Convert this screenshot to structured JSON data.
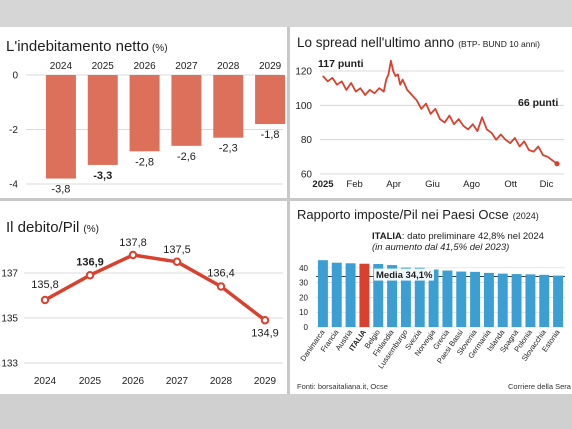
{
  "colors": {
    "bar": "#dd705a",
    "line": "#d9412e",
    "blue_bar": "#3c9fd4",
    "italy_bar": "#d9412e",
    "grid": "#cfcfcf",
    "text": "#1d1d1d"
  },
  "charts": {
    "debt_change": {
      "title_main": "L'indebitamento netto",
      "title_unit": "(%)"
    },
    "spread": {
      "title_main": "Lo spread nell'ultimo anno",
      "title_unit": "(BTP- BUND 10 anni)",
      "start_annotation": "117 punti",
      "end_annotation": "66 punti"
    },
    "debt_gdp": {
      "title_main": "Il debito/Pil",
      "title_unit": "(%)"
    },
    "tax_ratio": {
      "title_main": "Rapporto imposte/Pil nei Paesi Ocse",
      "title_unit": "(2024)",
      "italy_note_bold": "ITALIA",
      "italy_note_rest": ": dato preliminare 42,8% nel 2024",
      "italy_note_line2": "(in aumento dal 41,5% del 2023)",
      "average_label": "Media 34,1%"
    }
  },
  "footer": {
    "sources": "Fonti: borsaitaliana.it, Ocse",
    "credit": "Corriere della Sera"
  },
  "chart_data": [
    {
      "type": "bar",
      "title": "L'indebitamento netto (%)",
      "categories": [
        "2024",
        "2025",
        "2026",
        "2027",
        "2028",
        "2029"
      ],
      "values": [
        -3.8,
        -3.3,
        -2.8,
        -2.6,
        -2.3,
        -1.8
      ],
      "value_labels": [
        "-3,8",
        "-3,3",
        "-2,8",
        "-2,6",
        "-2,3",
        "-1,8"
      ],
      "yticks": [
        "0",
        "-2",
        "-4"
      ],
      "ylim": [
        -4,
        0
      ],
      "grid": true
    },
    {
      "type": "line",
      "title": "Lo spread nell'ultimo anno (BTP- BUND 10 anni)",
      "xticks": [
        "2025",
        "Feb",
        "Apr",
        "Giu",
        "Ago",
        "Ott",
        "Dic"
      ],
      "yticks": [
        "120",
        "100",
        "80",
        "60"
      ],
      "ylim": [
        60,
        125
      ],
      "x": [
        0,
        0.02,
        0.04,
        0.06,
        0.08,
        0.1,
        0.12,
        0.14,
        0.16,
        0.18,
        0.2,
        0.22,
        0.24,
        0.26,
        0.27,
        0.28,
        0.29,
        0.3,
        0.31,
        0.32,
        0.33,
        0.34,
        0.36,
        0.38,
        0.4,
        0.42,
        0.44,
        0.46,
        0.48,
        0.5,
        0.52,
        0.54,
        0.56,
        0.58,
        0.6,
        0.62,
        0.64,
        0.66,
        0.68,
        0.7,
        0.72,
        0.74,
        0.76,
        0.78,
        0.8,
        0.82,
        0.84,
        0.86,
        0.88,
        0.9,
        0.92,
        0.94,
        0.96,
        0.98,
        1.0
      ],
      "values": [
        117,
        114,
        116,
        112,
        114,
        109,
        113,
        108,
        110,
        106,
        109,
        107,
        110,
        108,
        115,
        118,
        126,
        120,
        117,
        118,
        112,
        115,
        109,
        106,
        103,
        98,
        101,
        95,
        98,
        92,
        90,
        94,
        89,
        92,
        88,
        86,
        89,
        85,
        93,
        86,
        84,
        80,
        83,
        80,
        78,
        81,
        76,
        79,
        74,
        73,
        76,
        71,
        70,
        68,
        66
      ],
      "grid": true
    },
    {
      "type": "line",
      "title": "Il debito/Pil (%)",
      "categories": [
        "2024",
        "2025",
        "2026",
        "2027",
        "2028",
        "2029"
      ],
      "values": [
        135.8,
        136.9,
        137.8,
        137.5,
        136.4,
        134.9
      ],
      "value_labels": [
        "135,8",
        "136,9",
        "137,8",
        "137,5",
        "136,4",
        "134,9"
      ],
      "yticks": [
        "137",
        "135",
        "133"
      ],
      "ylim": [
        133,
        138.5
      ],
      "grid": true
    },
    {
      "type": "bar",
      "title": "Rapporto imposte/Pil nei Paesi Ocse (2024)",
      "categories": [
        "Danimarca",
        "Francia",
        "Austria",
        "ITALIA",
        "Belgio",
        "Finlandia",
        "Lussemburgo",
        "Svezia",
        "Norvegia",
        "Grecia",
        "Paesi Bassi",
        "Slovenia",
        "Germania",
        "Islanda",
        "Spagna",
        "Polonia",
        "Slovacchia",
        "Estonia"
      ],
      "values": [
        45.2,
        43.5,
        43.1,
        42.8,
        42.6,
        41.9,
        40.2,
        40.1,
        38.9,
        38.2,
        37.5,
        37.3,
        36.6,
        36.1,
        35.8,
        35.6,
        35.3,
        34.8
      ],
      "highlight": "ITALIA",
      "average": 34.1,
      "yticks": [
        "40",
        "30",
        "20",
        "10",
        "0"
      ],
      "ylim": [
        0,
        46
      ],
      "grid": true
    }
  ]
}
